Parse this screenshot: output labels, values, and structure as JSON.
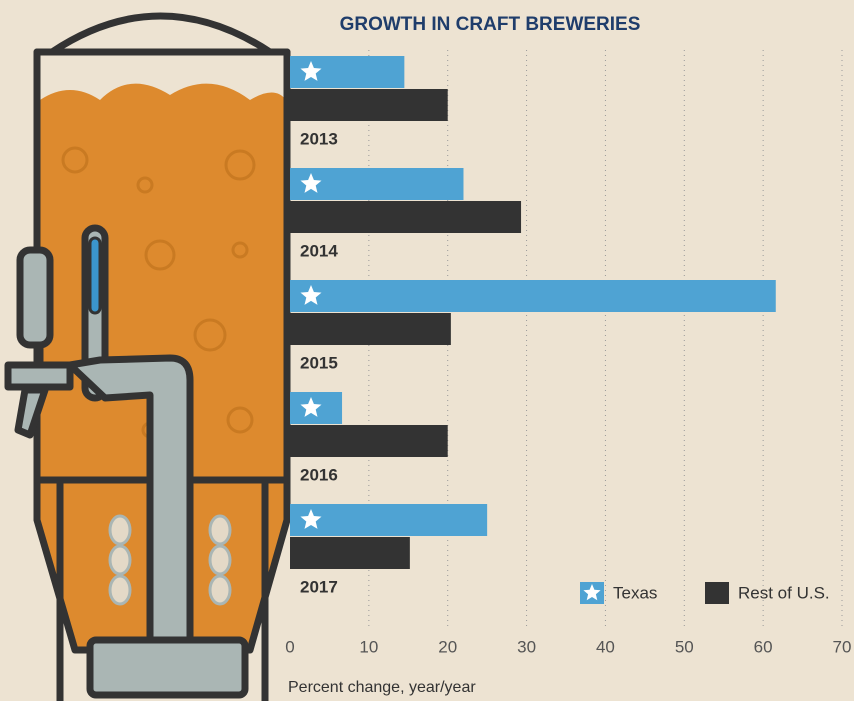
{
  "chart_data": {
    "type": "bar",
    "orientation": "horizontal",
    "title": "GROWTH IN CRAFT BREWERIES",
    "x_label": "Percent change, year/year",
    "categories": [
      "2013",
      "2014",
      "2015",
      "2016",
      "2017"
    ],
    "series": [
      {
        "name": "Texas",
        "color": "#4fa3d3",
        "values": [
          14.5,
          22,
          61.6,
          6.6,
          25
        ]
      },
      {
        "name": "Rest of U.S.",
        "color": "#333333",
        "values": [
          20,
          29.3,
          20.4,
          20,
          15.2
        ]
      }
    ],
    "xlim": [
      0,
      70
    ],
    "xticks": [
      0,
      10,
      20,
      30,
      40,
      50,
      60,
      70
    ],
    "grid": true,
    "legend": "lower right"
  }
}
